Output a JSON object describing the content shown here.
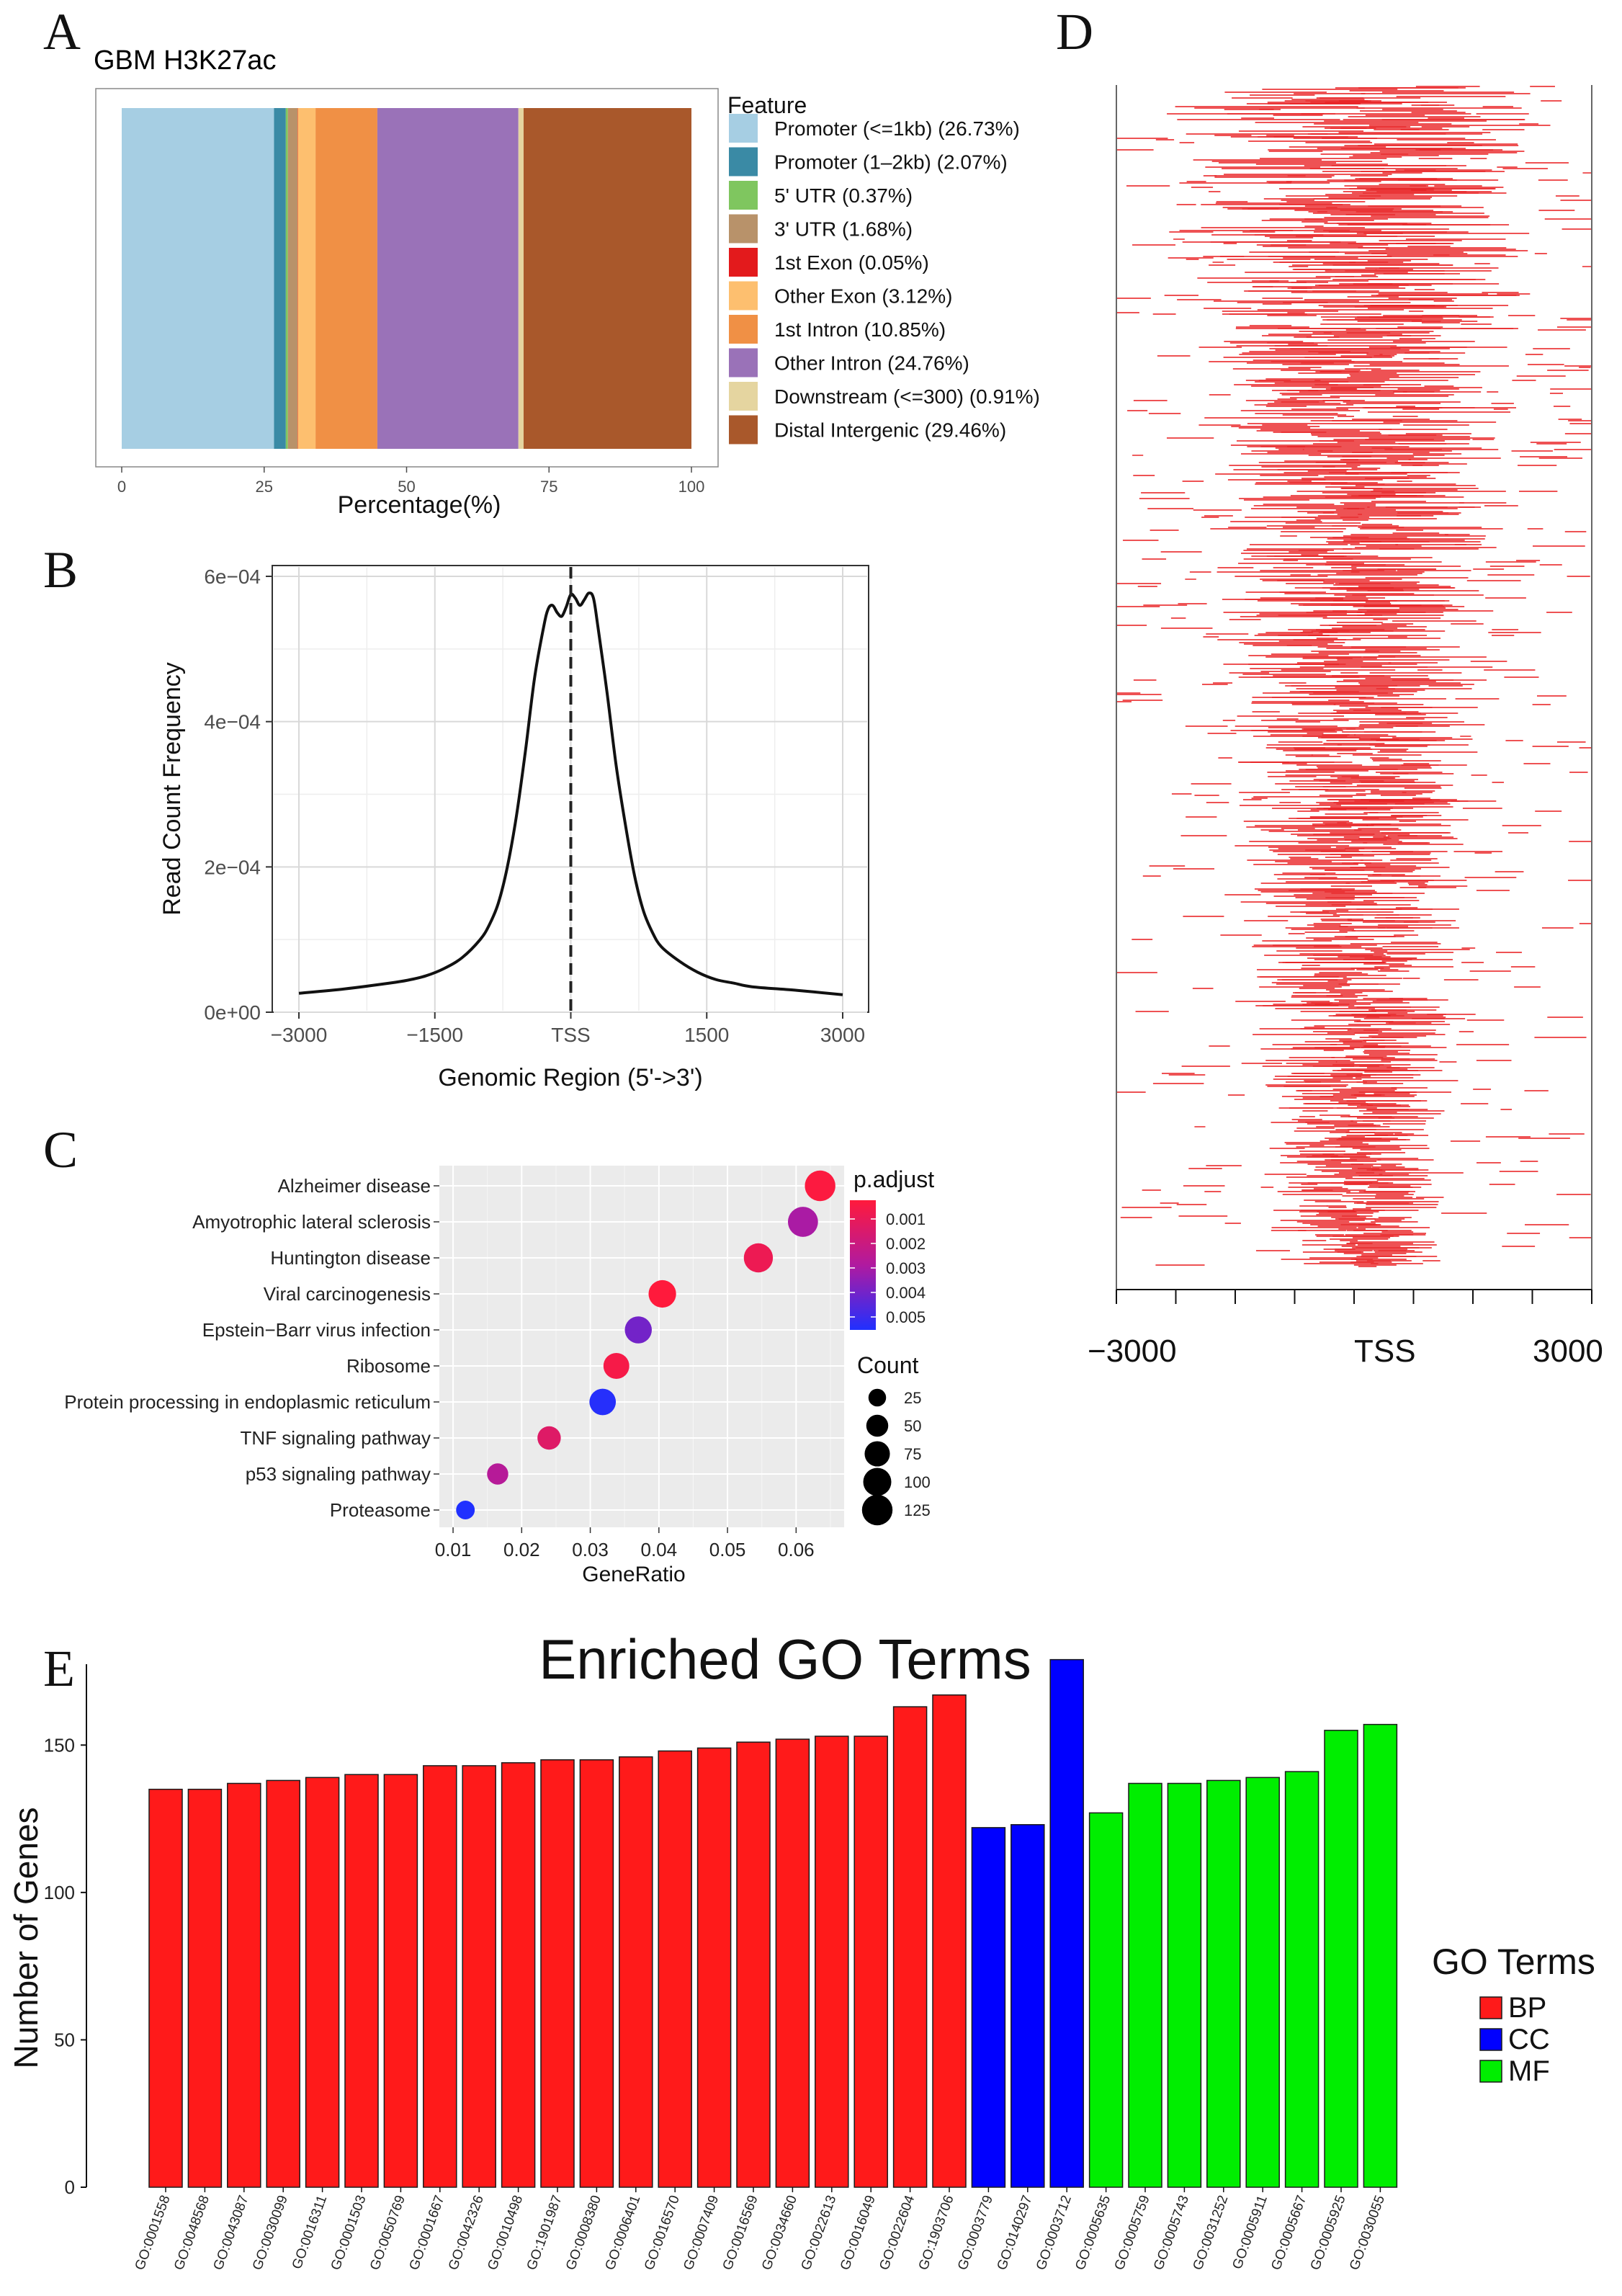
{
  "panel_letters": {
    "a": "A",
    "b": "B",
    "c": "C",
    "d": "D",
    "e": "E"
  },
  "colors": {
    "red": "#ff1a1a",
    "blue": "#0000ff",
    "green": "#00ee00",
    "heat_red": "#e8191b"
  },
  "chart_data": [
    {
      "id": "A",
      "type": "bar",
      "orientation": "horizontal-stacked",
      "title": "GBM H3K27ac",
      "xlabel": "Percentage(%)",
      "xlim": [
        0,
        100
      ],
      "xticks": [
        "0",
        "25",
        "50",
        "75",
        "100"
      ],
      "legend_title": "Feature",
      "series": [
        {
          "name": "Promoter (<=1kb) (26.73%)",
          "value": 26.73,
          "color": "#a6cee3"
        },
        {
          "name": "Promoter (1–2kb) (2.07%)",
          "value": 2.07,
          "color": "#3a8aa5"
        },
        {
          "name": "5' UTR (0.37%)",
          "value": 0.37,
          "color": "#7fc65f"
        },
        {
          "name": "3' UTR (1.68%)",
          "value": 1.68,
          "color": "#b8926a"
        },
        {
          "name": "1st Exon (0.05%)",
          "value": 0.05,
          "color": "#e31a1c"
        },
        {
          "name": "Other Exon (3.12%)",
          "value": 3.12,
          "color": "#fdbf6f"
        },
        {
          "name": "1st Intron (10.85%)",
          "value": 10.85,
          "color": "#f09045"
        },
        {
          "name": "Other Intron (24.76%)",
          "value": 24.76,
          "color": "#9a72b8"
        },
        {
          "name": "Downstream (<=300) (0.91%)",
          "value": 0.91,
          "color": "#e5d5a0"
        },
        {
          "name": "Distal Intergenic (29.46%)",
          "value": 29.46,
          "color": "#a9582b"
        }
      ]
    },
    {
      "id": "B",
      "type": "line",
      "xlabel": "Genomic Region (5'->3')",
      "ylabel": "Read Count Frequency",
      "xlim": [
        -3000,
        3000
      ],
      "ylim": [
        0,
        0.0006
      ],
      "xticks": [
        {
          "v": -3000,
          "label": "−3000"
        },
        {
          "v": -1500,
          "label": "−1500"
        },
        {
          "v": 0,
          "label": "TSS"
        },
        {
          "v": 1500,
          "label": "1500"
        },
        {
          "v": 3000,
          "label": "3000"
        }
      ],
      "yticks": [
        {
          "v": 0,
          "label": "0e+00"
        },
        {
          "v": 0.0002,
          "label": "2e−04"
        },
        {
          "v": 0.0004,
          "label": "4e−04"
        },
        {
          "v": 0.0006,
          "label": "6e−04"
        }
      ],
      "x": [
        -3000,
        -2500,
        -2000,
        -1800,
        -1600,
        -1400,
        -1200,
        -1000,
        -900,
        -800,
        -700,
        -600,
        -500,
        -400,
        -300,
        -250,
        -200,
        -150,
        -100,
        -50,
        0,
        50,
        100,
        150,
        200,
        250,
        300,
        400,
        500,
        600,
        700,
        800,
        900,
        1000,
        1200,
        1400,
        1600,
        1800,
        2000,
        2500,
        3000
      ],
      "y": [
        2.6e-05,
        3.2e-05,
        4e-05,
        4.4e-05,
        5e-05,
        6e-05,
        7.5e-05,
        0.0001,
        0.00012,
        0.00015,
        0.0002,
        0.00027,
        0.00036,
        0.00046,
        0.00053,
        0.000555,
        0.00056,
        0.00055,
        0.000545,
        0.000558,
        0.000575,
        0.00057,
        0.00056,
        0.000568,
        0.000577,
        0.00057,
        0.00053,
        0.00044,
        0.00034,
        0.00026,
        0.00019,
        0.00014,
        0.00011,
        9e-05,
        7e-05,
        5.5e-05,
        4.5e-05,
        4e-05,
        3.5e-05,
        3e-05,
        2.4e-05
      ]
    },
    {
      "id": "C",
      "type": "scatter",
      "xlabel": "GeneRatio",
      "xlim": [
        0.008,
        0.067
      ],
      "xticks": [
        "0.01",
        "0.02",
        "0.03",
        "0.04",
        "0.05",
        "0.06"
      ],
      "categories": [
        "Alzheimer disease",
        "Amyotrophic lateral sclerosis",
        "Huntington disease",
        "Viral carcinogenesis",
        "Epstein−Barr virus infection",
        "Ribosome",
        "Protein processing in endoplasmic reticulum",
        "TNF signaling pathway",
        "p53 signaling pathway",
        "Proteasome"
      ],
      "gene_ratio": [
        0.0635,
        0.061,
        0.0545,
        0.0405,
        0.037,
        0.0338,
        0.0318,
        0.024,
        0.0165,
        0.0118
      ],
      "count": [
        125,
        120,
        110,
        95,
        90,
        80,
        85,
        60,
        45,
        30
      ],
      "p_adjust": [
        0.0002,
        0.0028,
        0.0007,
        0.0001,
        0.0038,
        0.0004,
        0.0052,
        0.0012,
        0.0025,
        0.0053
      ],
      "color_legend": {
        "title": "p.adjust",
        "labels": [
          "0.001",
          "0.002",
          "0.003",
          "0.004",
          "0.005"
        ]
      },
      "size_legend": {
        "title": "Count",
        "labels": [
          "25",
          "50",
          "75",
          "100",
          "125"
        ]
      }
    },
    {
      "id": "D",
      "type": "heatmap",
      "xticks": [
        "−3000",
        "TSS",
        "3000"
      ],
      "description_free": true
    },
    {
      "id": "E",
      "type": "bar",
      "title": "Enriched GO Terms",
      "ylabel": "Number of Genes",
      "ylim": [
        0,
        175
      ],
      "yticks": [
        "0",
        "50",
        "100",
        "150"
      ],
      "legend_title": "GO Terms",
      "legend": [
        {
          "name": "BP",
          "color": "#ff1a1a"
        },
        {
          "name": "CC",
          "color": "#0000ff"
        },
        {
          "name": "MF",
          "color": "#00ee00"
        }
      ],
      "categories": [
        "GO:0001558",
        "GO:0048568",
        "GO:0043087",
        "GO:0030099",
        "GO:0016311",
        "GO:0001503",
        "GO:0050769",
        "GO:0001667",
        "GO:0042326",
        "GO:0010498",
        "GO:1901987",
        "GO:0008380",
        "GO:0006401",
        "GO:0016570",
        "GO:0007409",
        "GO:0016569",
        "GO:0034660",
        "GO:0022613",
        "GO:0016049",
        "GO:0022604",
        "GO:1903706",
        "GO:0003779",
        "GO:0140297",
        "GO:0003712",
        "GO:0005635",
        "GO:0005759",
        "GO:0005743",
        "GO:0031252",
        "GO:0005911",
        "GO:0005667",
        "GO:0005925",
        "GO:0030055"
      ],
      "values": [
        135,
        135,
        137,
        138,
        139,
        140,
        140,
        143,
        143,
        144,
        145,
        145,
        146,
        148,
        149,
        151,
        152,
        153,
        153,
        163,
        167,
        122,
        123,
        179,
        127,
        137,
        137,
        138,
        139,
        141,
        155,
        157
      ],
      "groups": [
        "BP",
        "BP",
        "BP",
        "BP",
        "BP",
        "BP",
        "BP",
        "BP",
        "BP",
        "BP",
        "BP",
        "BP",
        "BP",
        "BP",
        "BP",
        "BP",
        "BP",
        "BP",
        "BP",
        "BP",
        "BP",
        "CC",
        "CC",
        "CC",
        "MF",
        "MF",
        "MF",
        "MF",
        "MF",
        "MF",
        "MF",
        "MF"
      ]
    }
  ]
}
